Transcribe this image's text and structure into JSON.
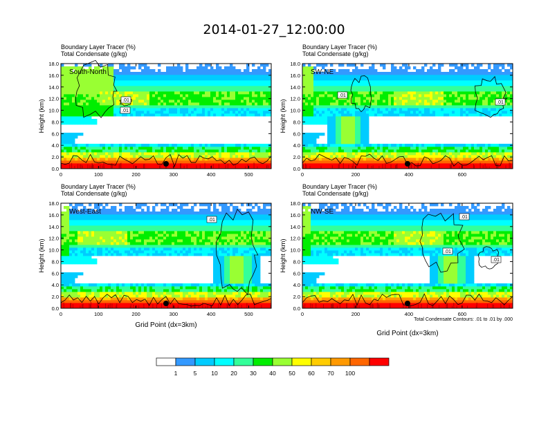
{
  "title": "2014-01-27_12:00:00",
  "footnote": "Total Condensate Contours: .01 to .01 by .000",
  "legend": {
    "colors": [
      "#ffffff",
      "#3399ff",
      "#00ccff",
      "#00ffff",
      "#33ff99",
      "#00ee00",
      "#99ff33",
      "#ffff00",
      "#ffcc00",
      "#ff9900",
      "#ff6600",
      "#ff0000"
    ],
    "labels": [
      "1",
      "5",
      "10",
      "20",
      "30",
      "40",
      "50",
      "60",
      "70",
      "100"
    ]
  },
  "chart_data": [
    {
      "type": "heatmap",
      "title_lines": [
        "Boundary Layer Tracer   (%)",
        "Total Condensate   (g/kg)"
      ],
      "panel_label": "South-North",
      "xlabel": "",
      "ylabel": "Height (km)",
      "xlim": [
        0,
        560
      ],
      "ylim": [
        0,
        18
      ],
      "xticks": [
        "0",
        "100",
        "200",
        "300",
        "400",
        "500"
      ],
      "yticks": [
        "0.0",
        "2.0",
        "4.0",
        "6.0",
        "8.0",
        "10.0",
        "12.0",
        "14.0",
        "16.0",
        "18.0"
      ],
      "contour_labels": [
        ".01",
        ".01"
      ],
      "marker_x": 280
    },
    {
      "type": "heatmap",
      "title_lines": [
        "Boundary Layer Tracer   (%)",
        "Total Condensate   (g/kg)"
      ],
      "panel_label": "SW-NE",
      "xlabel": "",
      "ylabel": "Height (km)",
      "xlim": [
        0,
        790
      ],
      "ylim": [
        0,
        18
      ],
      "xticks": [
        "0",
        "200",
        "400",
        "600"
      ],
      "yticks": [
        "0.0",
        "2.0",
        "4.0",
        "6.0",
        "8.0",
        "10.0",
        "12.0",
        "14.0",
        "16.0",
        "18.0"
      ],
      "contour_labels": [
        ".01",
        ".01"
      ],
      "marker_x": 395
    },
    {
      "type": "heatmap",
      "title_lines": [
        "Boundary Layer Tracer   (%)",
        "Total Condensate   (g/kg)"
      ],
      "panel_label": "West-East",
      "xlabel": "Grid Point (dx=3km)",
      "ylabel": "Height (km)",
      "xlim": [
        0,
        560
      ],
      "ylim": [
        0,
        18
      ],
      "xticks": [
        "0",
        "100",
        "200",
        "300",
        "400",
        "500"
      ],
      "yticks": [
        "0.0",
        "2.0",
        "4.0",
        "6.0",
        "8.0",
        "10.0",
        "12.0",
        "14.0",
        "16.0",
        "18.0"
      ],
      "contour_labels": [
        ".01"
      ],
      "marker_x": 280
    },
    {
      "type": "heatmap",
      "title_lines": [
        "Boundary Layer Tracer   (%)",
        "Total Condensate   (g/kg)"
      ],
      "panel_label": "NW-SE",
      "xlabel": "Grid Point (dx=3km)",
      "ylabel": "Height (km)",
      "xlim": [
        0,
        790
      ],
      "ylim": [
        0,
        18
      ],
      "xticks": [
        "0",
        "200",
        "400",
        "600"
      ],
      "yticks": [
        "0.0",
        "2.0",
        "4.0",
        "6.0",
        "8.0",
        "10.0",
        "12.0",
        "14.0",
        "16.0",
        "18.0"
      ],
      "contour_labels": [
        ".01",
        ".01",
        ".01"
      ],
      "marker_x": 395
    }
  ]
}
